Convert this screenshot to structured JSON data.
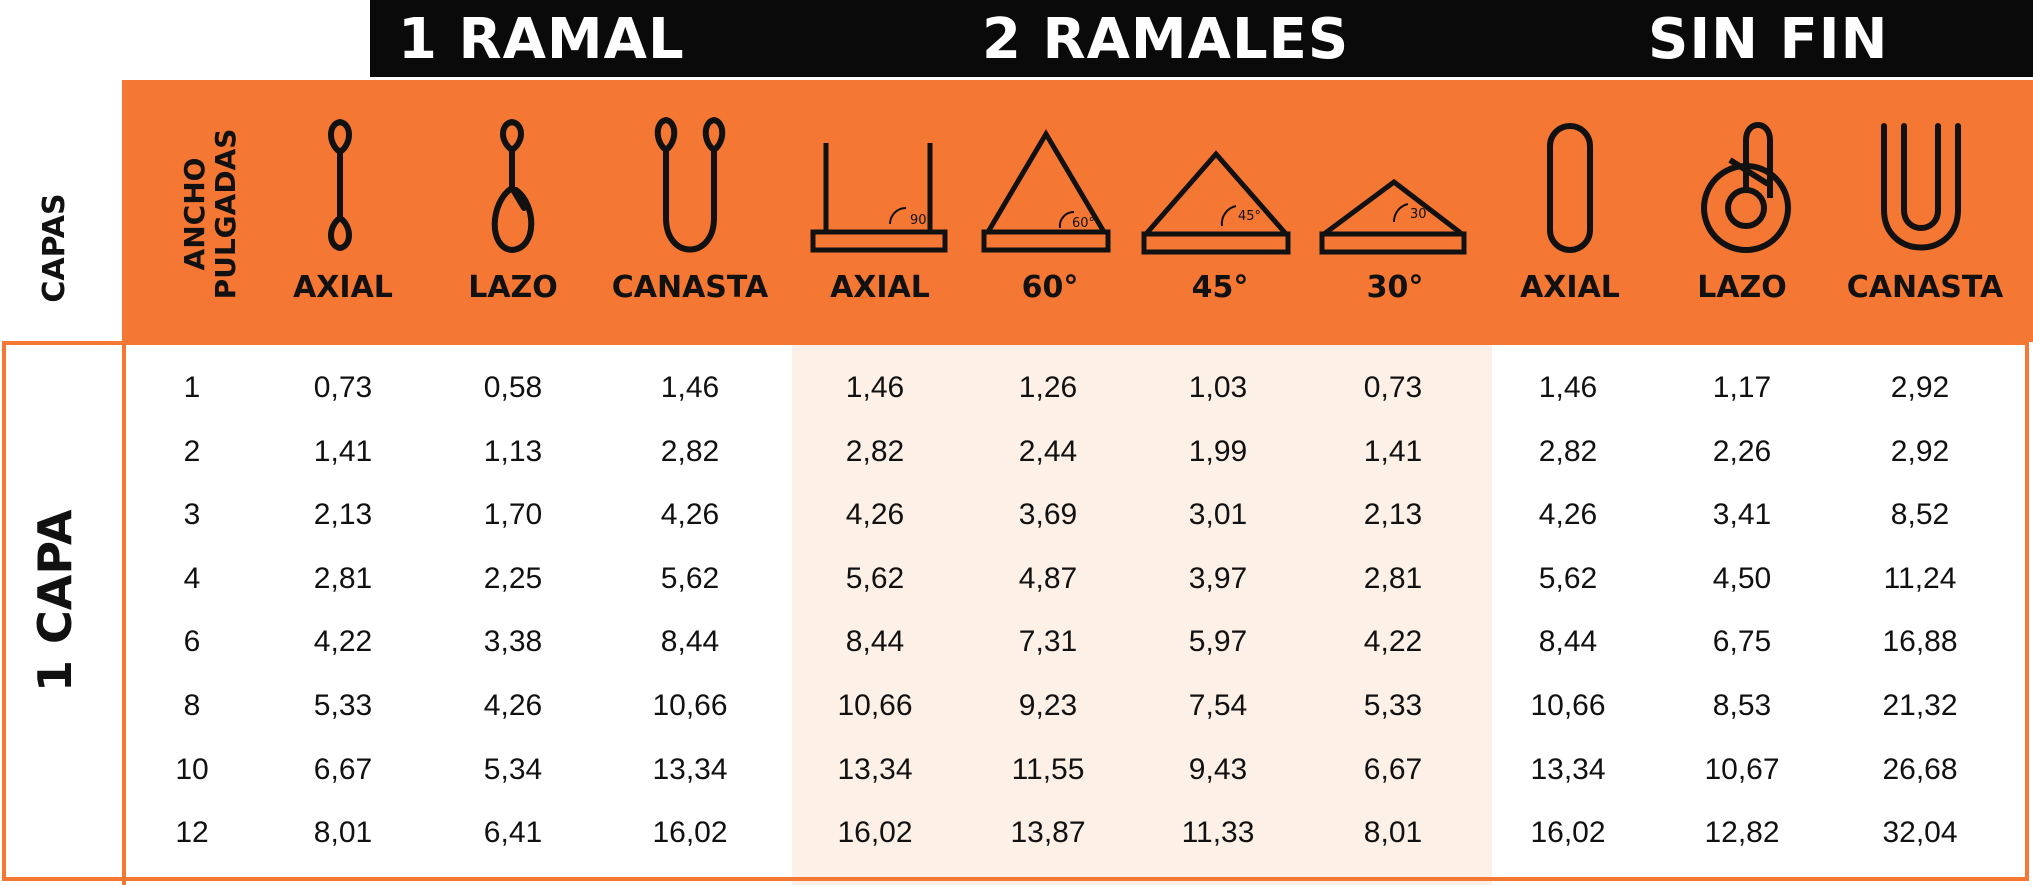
{
  "groups": {
    "ramal1": "1 RAMAL",
    "ramales2": "2 RAMALES",
    "sinfin": "SIN FIN"
  },
  "header": {
    "capas": "CAPAS",
    "ancho_line1": "ANCHO",
    "ancho_line2": "PULGADAS"
  },
  "columns": [
    "AXIAL",
    "LAZO",
    "CANASTA",
    "AXIAL",
    "60°",
    "45°",
    "30°",
    "AXIAL",
    "LAZO",
    "CANASTA"
  ],
  "angle_badges": [
    "90°",
    "60°",
    "45°",
    "30°"
  ],
  "section_label": "1 CAPA",
  "colors": {
    "accent": "#f47733",
    "header_bar": "#0a0a0a",
    "shade": "#fdf0e7"
  },
  "rows": [
    [
      "1",
      "0,73",
      "0,58",
      "1,46",
      "1,46",
      "1,26",
      "1,03",
      "0,73",
      "1,46",
      "1,17",
      "2,92"
    ],
    [
      "2",
      "1,41",
      "1,13",
      "2,82",
      "2,82",
      "2,44",
      "1,99",
      "1,41",
      "2,82",
      "2,26",
      "2,92"
    ],
    [
      "3",
      "2,13",
      "1,70",
      "4,26",
      "4,26",
      "3,69",
      "3,01",
      "2,13",
      "4,26",
      "3,41",
      "8,52"
    ],
    [
      "4",
      "2,81",
      "2,25",
      "5,62",
      "5,62",
      "4,87",
      "3,97",
      "2,81",
      "5,62",
      "4,50",
      "11,24"
    ],
    [
      "6",
      "4,22",
      "3,38",
      "8,44",
      "8,44",
      "7,31",
      "5,97",
      "4,22",
      "8,44",
      "6,75",
      "16,88"
    ],
    [
      "8",
      "5,33",
      "4,26",
      "10,66",
      "10,66",
      "9,23",
      "7,54",
      "5,33",
      "10,66",
      "8,53",
      "21,32"
    ],
    [
      "10",
      "6,67",
      "5,34",
      "13,34",
      "13,34",
      "11,55",
      "9,43",
      "6,67",
      "13,34",
      "10,67",
      "26,68"
    ],
    [
      "12",
      "8,01",
      "6,41",
      "16,02",
      "16,02",
      "13,87",
      "11,33",
      "8,01",
      "16,02",
      "12,82",
      "32,04"
    ]
  ]
}
